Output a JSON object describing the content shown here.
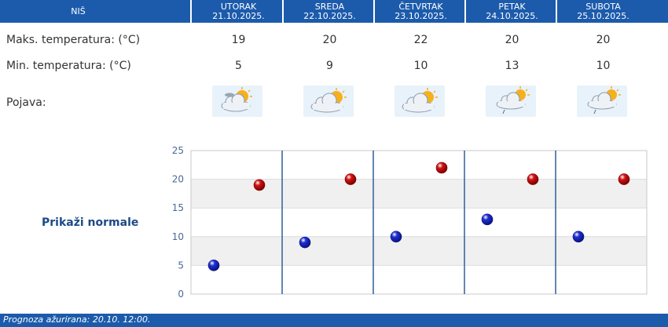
{
  "header": {
    "location": "NIŠ",
    "days": [
      {
        "name": "UTORAK",
        "date": "21.10.2025."
      },
      {
        "name": "SREDA",
        "date": "22.10.2025."
      },
      {
        "name": "ČETVRTAK",
        "date": "23.10.2025."
      },
      {
        "name": "PETAK",
        "date": "24.10.2025."
      },
      {
        "name": "SUBOTA",
        "date": "25.10.2025."
      }
    ]
  },
  "rows": {
    "max_label": "Maks. temperatura: (°C)",
    "min_label": "Min. temperatura: (°C)",
    "phenomenon_label": "Pojava:",
    "max_values": [
      "19",
      "20",
      "22",
      "20",
      "20"
    ],
    "min_values": [
      "5",
      "9",
      "10",
      "13",
      "10"
    ],
    "icons": [
      "partly-cloudy-icon",
      "partly-cloudy-icon",
      "partly-cloudy-icon",
      "cloudy-light-rain-icon",
      "cloudy-light-rain-icon"
    ]
  },
  "chart_link": "Prikaži normale",
  "chart_data": {
    "type": "scatter",
    "categories": [
      "21.10.2025.",
      "22.10.2025.",
      "23.10.2025.",
      "24.10.2025.",
      "25.10.2025."
    ],
    "ylim": [
      0,
      25
    ],
    "yticks": [
      "0",
      "5",
      "10",
      "15",
      "20",
      "25"
    ],
    "series": [
      {
        "values": [
          5,
          9,
          10,
          13,
          10
        ],
        "color": "#1f2fd6"
      },
      {
        "values": [
          19,
          20,
          22,
          20,
          20
        ],
        "color": "#d41414"
      }
    ],
    "grid": true
  },
  "footer": {
    "updated_label": "Prognoza ažurirana:",
    "updated_value": "20.10. 12:00."
  }
}
